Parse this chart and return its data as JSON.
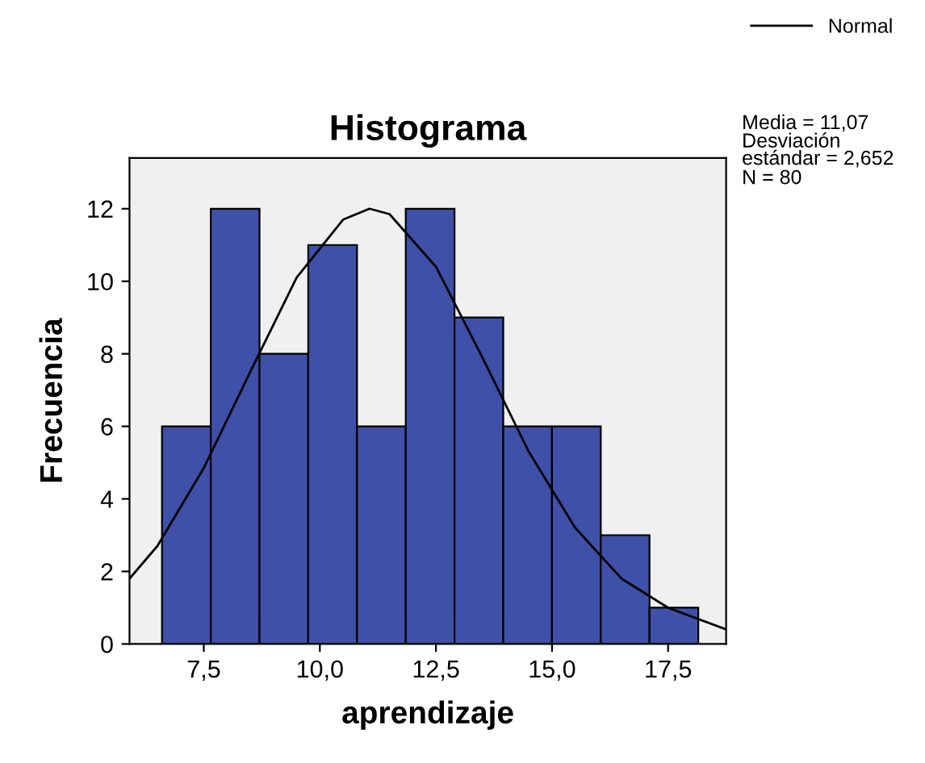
{
  "chart_data": {
    "type": "histogram",
    "title": "Histograma",
    "xlabel": "aprendizaje",
    "ylabel": "Frecuencia",
    "bins": [
      6.6,
      7.65,
      8.7,
      9.75,
      10.8,
      11.85,
      12.9,
      13.95,
      15.0,
      16.05,
      17.1,
      18.15
    ],
    "series": [
      {
        "color": "#3e50a8",
        "values": [
          6,
          12,
          8,
          11,
          6,
          12,
          9,
          6,
          6,
          3,
          1
        ]
      },
      {
        "type": "line",
        "name": "Normal",
        "color": "#000000",
        "x": [
          5.9,
          6.5,
          7.5,
          8.5,
          9.5,
          10.5,
          11.07,
          11.5,
          12.5,
          13.5,
          14.5,
          15.5,
          16.5,
          17.5,
          18.75
        ],
        "values": [
          1.8,
          2.7,
          4.85,
          7.5,
          10.1,
          11.7,
          12,
          11.85,
          10.4,
          7.9,
          5.3,
          3.2,
          1.8,
          1.0,
          0.4
        ]
      }
    ],
    "xlim": [
      5.9,
      18.75
    ],
    "ylim": [
      0,
      13.4
    ],
    "xticks": [
      {
        "value": 7.5,
        "label": "7,5"
      },
      {
        "value": 10.0,
        "label": "10,0"
      },
      {
        "value": 12.5,
        "label": "12,5"
      },
      {
        "value": 15.0,
        "label": "15,0"
      },
      {
        "value": 17.5,
        "label": "17,5"
      }
    ],
    "yticks": [
      0,
      2,
      4,
      6,
      8,
      10,
      12
    ],
    "grid": false,
    "legend": "top right",
    "annotations": [
      "Media = 11,07",
      "Desviación\nestándar = 2,652",
      "N = 80"
    ]
  }
}
